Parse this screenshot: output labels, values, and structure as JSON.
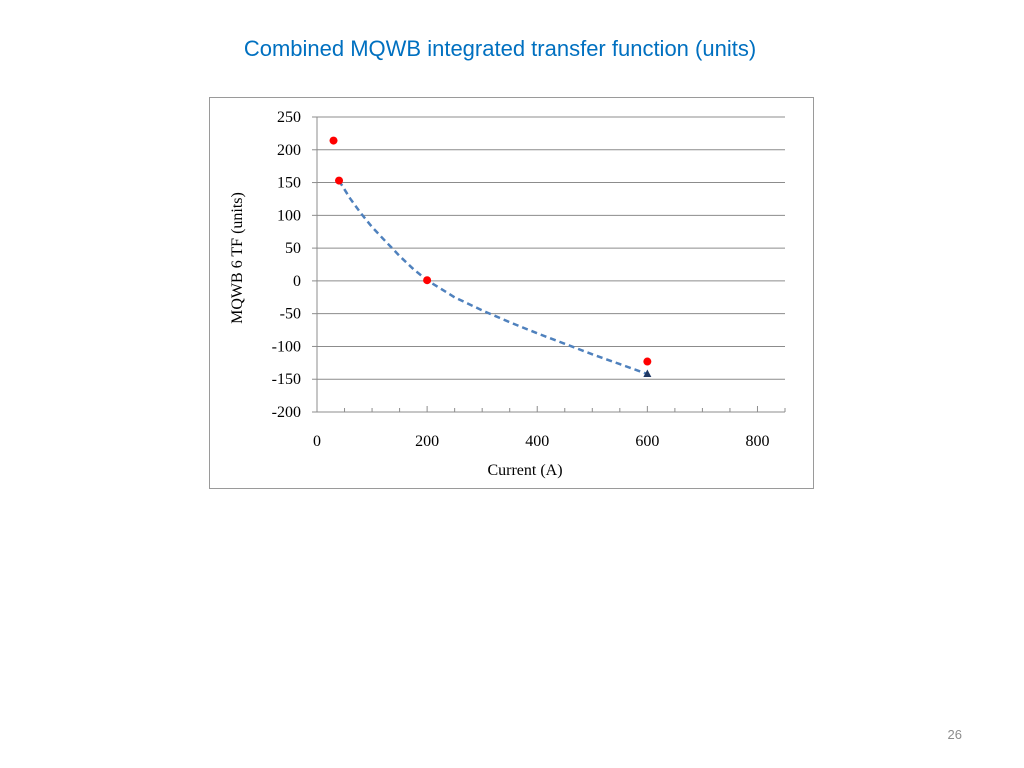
{
  "slide": {
    "title": "Combined MQWB integrated transfer function (units)",
    "page_number": "26"
  },
  "chart_data": {
    "type": "scatter",
    "title": "",
    "xlabel": "Current (A)",
    "ylabel": "MQWB 6 TF (units)",
    "xlim": [
      0,
      850
    ],
    "ylim": [
      -200,
      250
    ],
    "xticks": [
      0,
      200,
      400,
      600,
      800
    ],
    "yticks": [
      250,
      200,
      150,
      100,
      50,
      0,
      -50,
      -100,
      -150,
      -200
    ],
    "grid": "horizontal",
    "legend": "none",
    "series": [
      {
        "type": "scatter",
        "marker": "circle",
        "color": "#ff0000",
        "x": [
          30,
          40,
          200,
          600
        ],
        "y": [
          214,
          153,
          1,
          -123
        ]
      },
      {
        "type": "line",
        "style": "dashed",
        "color": "#4f81bd",
        "x": [
          40,
          60,
          80,
          100,
          125,
          150,
          175,
          200,
          250,
          300,
          350,
          400,
          450,
          500,
          550,
          600
        ],
        "y": [
          153,
          126,
          103,
          82,
          60,
          38,
          18,
          1,
          -25,
          -45,
          -63,
          -80,
          -96,
          -112,
          -127,
          -142
        ]
      },
      {
        "type": "scatter",
        "marker": "triangle",
        "color": "#1f3864",
        "x": [
          600
        ],
        "y": [
          -142
        ]
      }
    ]
  }
}
